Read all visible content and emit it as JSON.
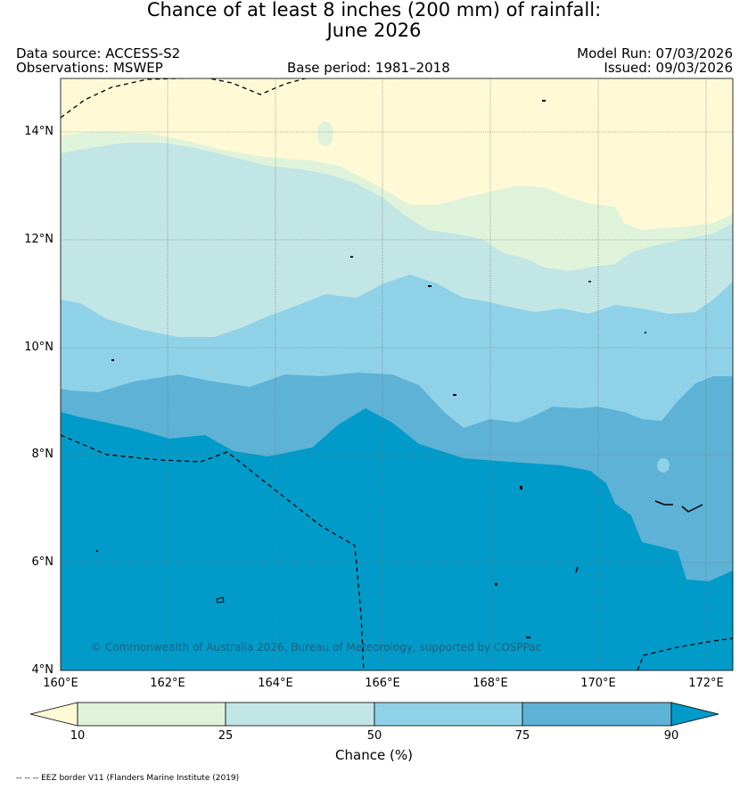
{
  "title": {
    "line1": "Chance of at least 8 inches (200  mm) of rainfall:",
    "line2": "June 2026"
  },
  "meta": {
    "data_source": "Data source: ACCESS-S2",
    "observations": "Observations: MSWEP",
    "base_period": "Base period: 1981–2018",
    "model_run": "Model Run: 07/03/2026",
    "issued": "Issued: 09/03/2026"
  },
  "map": {
    "lat_labels": [
      "14°N",
      "12°N",
      "10°N",
      "8°N",
      "6°N",
      "4°N"
    ],
    "lon_labels": [
      "160°E",
      "162°E",
      "164°E",
      "166°E",
      "168°E",
      "170°E",
      "172°E"
    ],
    "lat_range": [
      4,
      15
    ],
    "lon_range": [
      160,
      172.5
    ],
    "copyright": "© Commonwealth of Australia 2026, Bureau of Meteorology, supported by COSPPac"
  },
  "legend": {
    "ticks": [
      "10",
      "25",
      "50",
      "75",
      "90"
    ],
    "title": "Chance (%)",
    "colors": [
      "#fff9d6",
      "#dff3db",
      "#c2e5e6",
      "#8fd2e8",
      "#5db2d6",
      "#009bc9"
    ],
    "categories": [
      "<10",
      "10–25",
      "25–50",
      "50–75",
      "75–90",
      ">90"
    ]
  },
  "footer": "-- -- -- EEZ border V11 (Flanders Marine Institute (2019)"
}
